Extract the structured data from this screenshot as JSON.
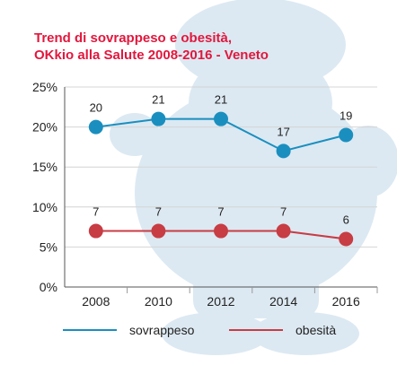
{
  "chart_data": {
    "type": "line",
    "title_line1": "Trend di sovrappeso e obesità,",
    "title_line2": "OKkio alla Salute 2008-2016 - Veneto",
    "categories": [
      "2008",
      "2010",
      "2012",
      "2014",
      "2016"
    ],
    "y_ticks": [
      "0%",
      "5%",
      "10%",
      "15%",
      "20%",
      "25%"
    ],
    "ylim": [
      0,
      25
    ],
    "grid": true,
    "legend_position": "bottom",
    "series": [
      {
        "name": "sovrappeso",
        "values": [
          20,
          21,
          21,
          17,
          19
        ],
        "labels": [
          "20",
          "21",
          "21",
          "17",
          "19"
        ],
        "color": "#1a8fbf"
      },
      {
        "name": "obesità",
        "values": [
          7,
          7,
          7,
          7,
          6
        ],
        "labels": [
          "7",
          "7",
          "7",
          "7",
          "6"
        ],
        "color": "#c83c44"
      }
    ]
  },
  "colors": {
    "title": "#e2173d",
    "axis_text": "#222222",
    "grid": "#d4d4d4",
    "watermark": "#dce9f2"
  }
}
